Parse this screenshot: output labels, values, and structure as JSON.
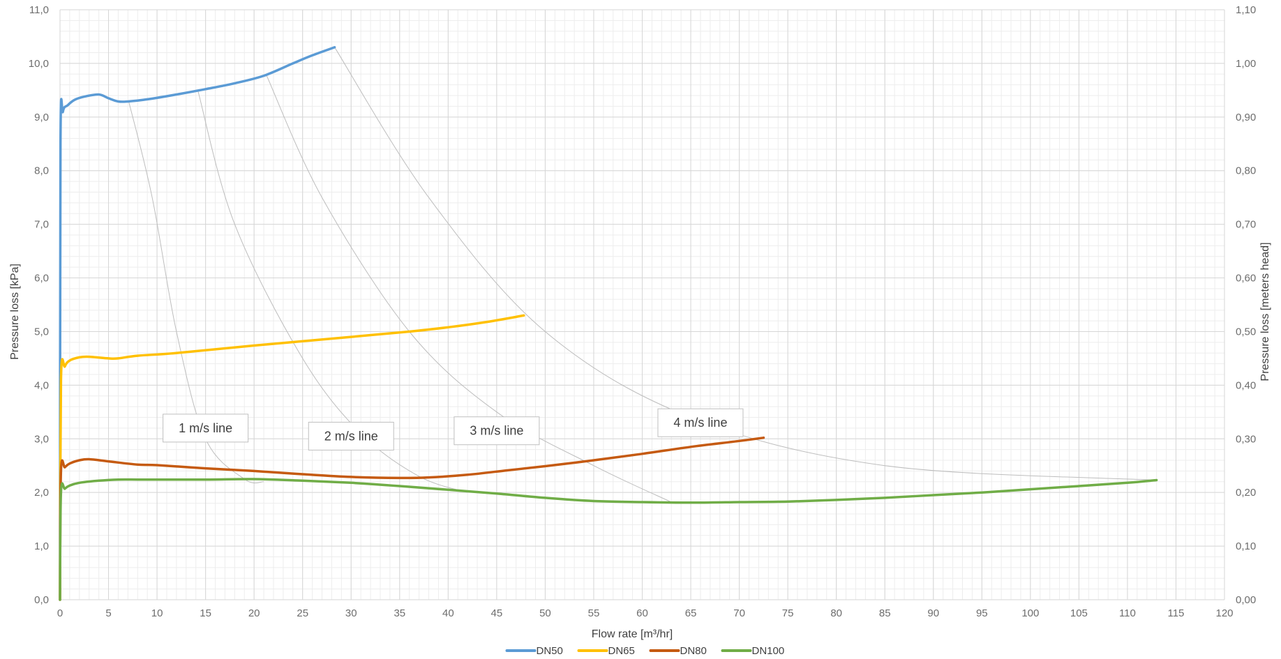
{
  "chart_data": {
    "type": "line",
    "title": "",
    "xlabel": "Flow rate [m³/hr]",
    "ylabel": "Pressure loss [kPa]",
    "y2label": "Pressure loss [meters head]",
    "xlim": [
      0,
      120
    ],
    "ylim": [
      0,
      11
    ],
    "y2lim": [
      0,
      1.1
    ],
    "x_ticks": [
      "0",
      "5",
      "10",
      "15",
      "20",
      "25",
      "30",
      "35",
      "40",
      "45",
      "50",
      "55",
      "60",
      "65",
      "70",
      "75",
      "80",
      "85",
      "90",
      "95",
      "100",
      "105",
      "110",
      "115",
      "120"
    ],
    "y_ticks": [
      "0,0",
      "1,0",
      "2,0",
      "3,0",
      "4,0",
      "5,0",
      "6,0",
      "7,0",
      "8,0",
      "9,0",
      "10,0",
      "11,0"
    ],
    "y2_ticks": [
      "0,00",
      "0,10",
      "0,20",
      "0,30",
      "0,40",
      "0,50",
      "0,60",
      "0,70",
      "0,80",
      "0,90",
      "1,00",
      "1,10"
    ],
    "grid": true,
    "legend_position": "bottom",
    "series": [
      {
        "name": "DN50",
        "color": "#5b9bd5",
        "x": [
          0,
          0.05,
          0.3,
          0.8,
          1.5,
          2.5,
          4,
          5,
          6,
          7,
          9,
          12,
          15,
          18,
          21,
          24,
          26,
          28.3
        ],
        "y": [
          0,
          8.5,
          9.1,
          9.22,
          9.32,
          9.38,
          9.42,
          9.35,
          9.29,
          9.29,
          9.33,
          9.42,
          9.52,
          9.63,
          9.77,
          10.0,
          10.15,
          10.3
        ]
      },
      {
        "name": "DN65",
        "color": "#ffc000",
        "x": [
          0,
          0.1,
          0.5,
          1,
          2,
          3,
          5,
          6,
          8,
          12,
          20,
          30,
          36,
          40,
          44,
          47.8
        ],
        "y": [
          0,
          4.1,
          4.35,
          4.46,
          4.52,
          4.53,
          4.5,
          4.5,
          4.55,
          4.6,
          4.74,
          4.9,
          5.0,
          5.08,
          5.18,
          5.3
        ]
      },
      {
        "name": "DN80",
        "color": "#c55a11",
        "x": [
          0,
          0.1,
          0.5,
          1,
          2,
          3,
          5,
          8,
          10,
          15,
          20,
          25,
          30,
          35,
          38,
          42,
          46,
          50,
          55,
          60,
          65,
          70,
          72.5
        ],
        "y": [
          0,
          2.4,
          2.47,
          2.54,
          2.6,
          2.62,
          2.58,
          2.52,
          2.51,
          2.45,
          2.4,
          2.34,
          2.29,
          2.27,
          2.28,
          2.33,
          2.41,
          2.49,
          2.6,
          2.72,
          2.85,
          2.96,
          3.02
        ]
      },
      {
        "name": "DN100",
        "color": "#70ad47",
        "x": [
          0,
          0.1,
          0.5,
          1,
          2,
          4,
          6,
          8,
          10,
          15,
          20,
          25,
          30,
          35,
          40,
          45,
          50,
          55,
          60,
          65,
          70,
          75,
          80,
          85,
          90,
          95,
          100,
          105,
          110,
          113
        ],
        "y": [
          0,
          2.0,
          2.07,
          2.13,
          2.18,
          2.22,
          2.24,
          2.24,
          2.24,
          2.24,
          2.25,
          2.22,
          2.18,
          2.12,
          2.05,
          1.98,
          1.9,
          1.84,
          1.82,
          1.81,
          1.82,
          1.83,
          1.86,
          1.9,
          1.95,
          2.0,
          2.06,
          2.12,
          2.18,
          2.23
        ]
      }
    ],
    "velocity_lines": [
      {
        "label": "1 m/s line",
        "label_pos": [
          15,
          3.2
        ],
        "x": [
          7.1,
          9.5,
          12,
          15,
          19,
          21
        ],
        "y": [
          9.28,
          7.5,
          5.0,
          3.0,
          2.25,
          2.2
        ]
      },
      {
        "label": "2 m/s line",
        "label_pos": [
          30,
          3.05
        ],
        "x": [
          14.2,
          18,
          25,
          31,
          37,
          42
        ],
        "y": [
          9.5,
          7.0,
          4.5,
          3.1,
          2.3,
          2.0
        ]
      },
      {
        "label": "3 m/s line",
        "label_pos": [
          45,
          3.15
        ],
        "x": [
          21.3,
          27,
          36,
          45,
          55,
          63
        ],
        "y": [
          9.77,
          7.5,
          5.0,
          3.5,
          2.5,
          1.82
        ]
      },
      {
        "label": "4 m/s line",
        "label_pos": [
          66,
          3.3
        ],
        "x": [
          28.3,
          38,
          50,
          65,
          85,
          113
        ],
        "y": [
          10.3,
          7.5,
          5.0,
          3.4,
          2.5,
          2.23
        ]
      }
    ]
  }
}
